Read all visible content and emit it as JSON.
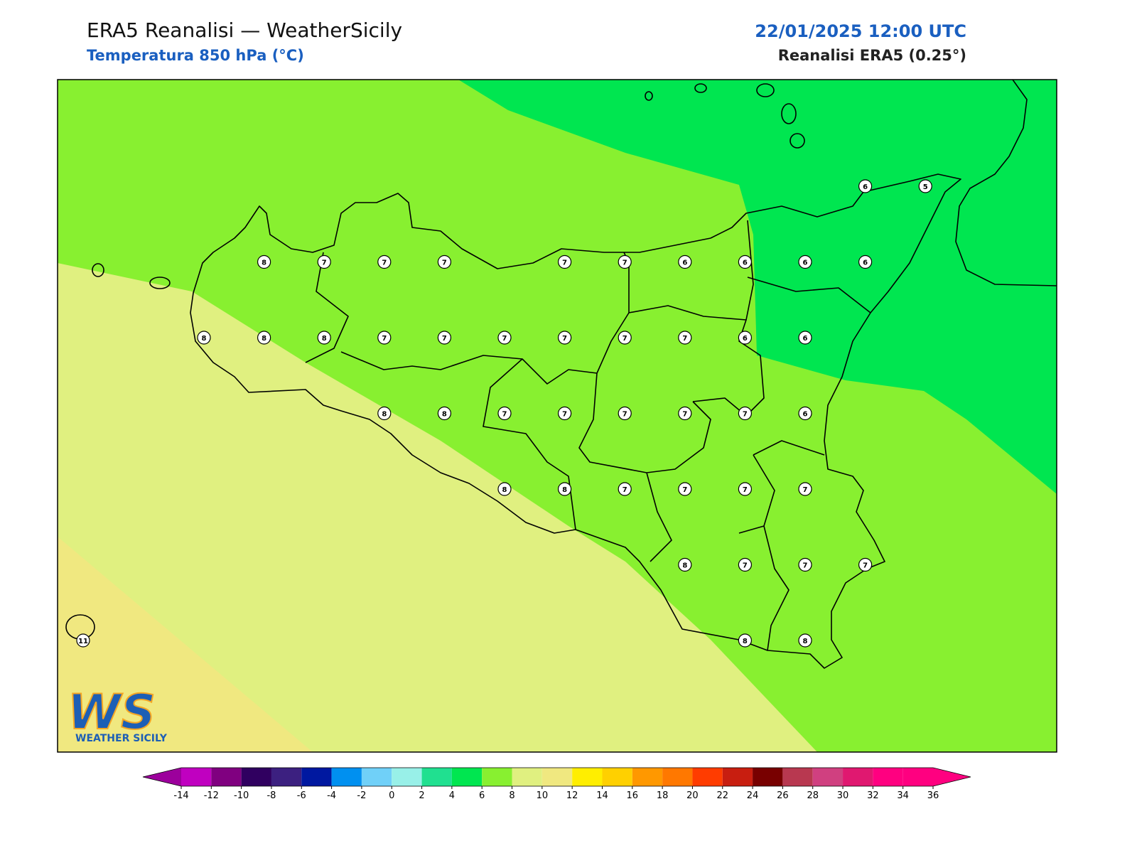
{
  "header": {
    "title": "ERA5 Reanalisi — WeatherSicily",
    "subtitle": "Temperatura 850 hPa (°C)",
    "datetime": "22/01/2025 12:00 UTC",
    "source": "Reanalisi ERA5 (0.25°)"
  },
  "stations": [
    6,
    5,
    8,
    7,
    7,
    7,
    7,
    7,
    6,
    6,
    6,
    6,
    8,
    8,
    8,
    7,
    7,
    7,
    7,
    7,
    7,
    6,
    6,
    8,
    8,
    7,
    7,
    7,
    7,
    7,
    6,
    8,
    8,
    7,
    7,
    7,
    7,
    8,
    7,
    7,
    7,
    11,
    8,
    8
  ],
  "colorbar": {
    "ticks": [
      -14,
      -12,
      -10,
      -8,
      -6,
      -4,
      -2,
      0,
      2,
      4,
      6,
      8,
      10,
      12,
      14,
      16,
      18,
      20,
      22,
      24,
      26,
      28,
      30,
      32,
      34,
      36
    ],
    "under_color": "#9c009c",
    "over_color": "#ff0080",
    "colors": [
      "#c000c0",
      "#800080",
      "#300060",
      "#3c2080",
      "#0018a0",
      "#0090f0",
      "#70d0f8",
      "#98f0e8",
      "#20e090",
      "#00e650",
      "#88f030",
      "#e0f080",
      "#f0e880",
      "#ffee00",
      "#ffd000",
      "#ff9800",
      "#ff7800",
      "#ff3c00",
      "#c81e10",
      "#780000",
      "#b83850",
      "#d04080",
      "#e01870",
      "#ff0080",
      "#ff0080"
    ]
  },
  "logo": {
    "mark": "WS",
    "text": "WEATHER SICILY"
  }
}
